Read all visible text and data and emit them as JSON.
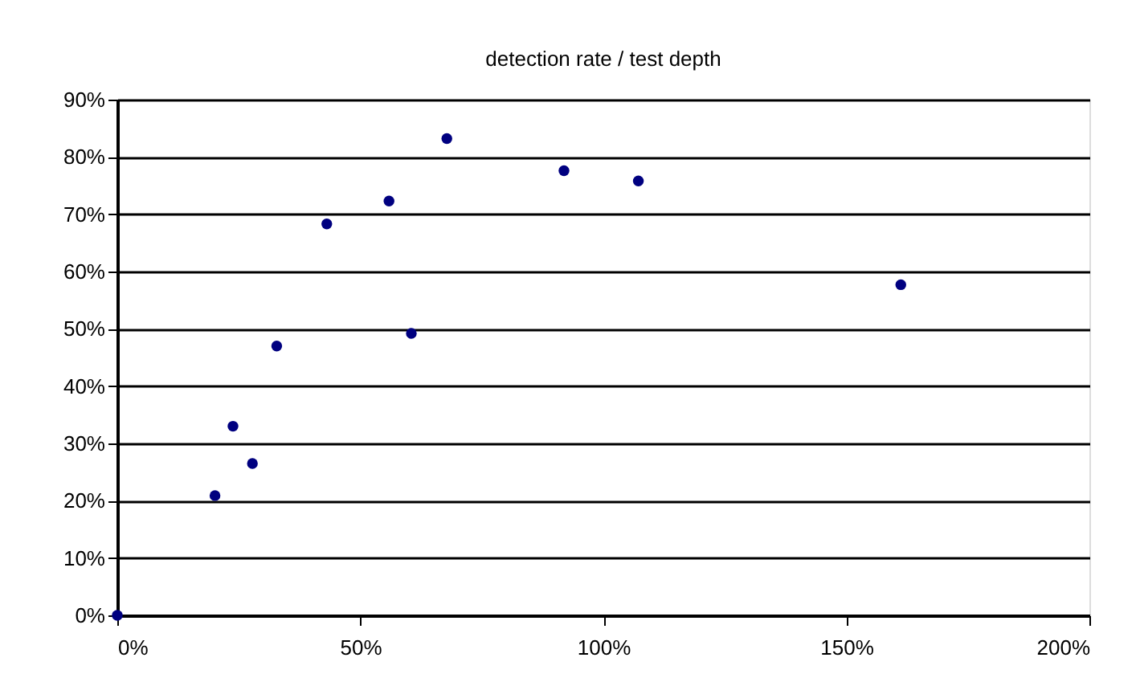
{
  "chart_data": {
    "type": "scatter",
    "title": "detection rate / test depth",
    "x": [
      0,
      20.1,
      23.8,
      27.8,
      32.8,
      43.1,
      55.9,
      60.5,
      67.8,
      91.9,
      107.2,
      161.2
    ],
    "values": [
      0,
      20.9,
      33.0,
      26.5,
      47.0,
      68.3,
      72.3,
      49.2,
      83.2,
      77.6,
      75.8,
      57.7
    ],
    "color": "#000080",
    "marker": "circle",
    "grid": "y",
    "xlim": [
      0,
      200
    ],
    "xticks": [
      {
        "value": 0,
        "label": "0%"
      },
      {
        "value": 50,
        "label": "50%"
      },
      {
        "value": 100,
        "label": "100%"
      },
      {
        "value": 150,
        "label": "150%"
      },
      {
        "value": 200,
        "label": "200%"
      }
    ],
    "ylim": [
      0,
      90
    ],
    "yticks": [
      {
        "value": 0,
        "label": "0%"
      },
      {
        "value": 10,
        "label": "10%"
      },
      {
        "value": 20,
        "label": "20%"
      },
      {
        "value": 30,
        "label": "30%"
      },
      {
        "value": 40,
        "label": "40%"
      },
      {
        "value": 50,
        "label": "50%"
      },
      {
        "value": 60,
        "label": "60%"
      },
      {
        "value": 70,
        "label": "70%"
      },
      {
        "value": 80,
        "label": "80%"
      },
      {
        "value": 90,
        "label": "90%"
      }
    ]
  }
}
